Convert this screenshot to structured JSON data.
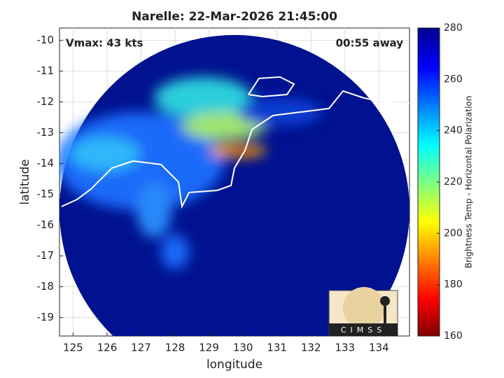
{
  "chart_data": {
    "type": "map",
    "title": "Narelle: 22-Mar-2026 21:45:00",
    "annotations": [
      "Vmax: 43 kts",
      "00:55 away"
    ],
    "xlabel": "longitude",
    "ylabel": "latitude",
    "xlim": [
      124.6,
      134.9
    ],
    "ylim": [
      -19.6,
      -9.6
    ],
    "xticks": [
      125,
      126,
      127,
      128,
      129,
      130,
      131,
      132,
      133,
      134
    ],
    "yticks": [
      -10,
      -11,
      -12,
      -13,
      -14,
      -15,
      -16,
      -17,
      -18,
      -19
    ],
    "grid": true,
    "colorbar": {
      "label": "Brightness Temp - Horizontal Polarization",
      "lim": [
        160,
        280
      ],
      "ticks": [
        160,
        180,
        200,
        220,
        240,
        260,
        280
      ]
    }
  },
  "logo": {
    "text": "CIMSS"
  }
}
